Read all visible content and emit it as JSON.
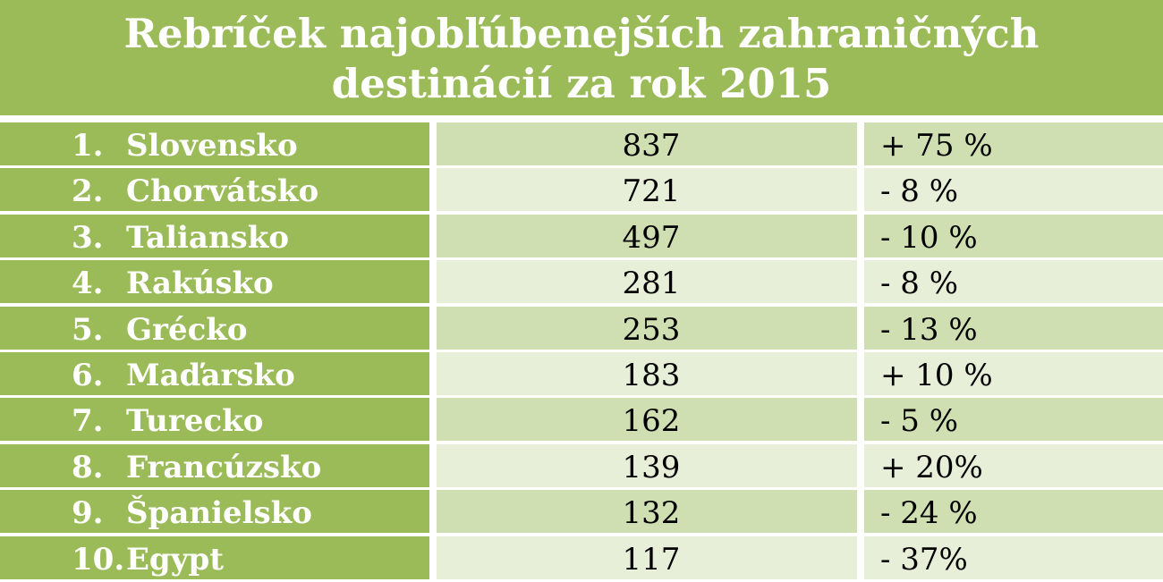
{
  "title": {
    "line1": "Rebríček najobľúbenejších zahraničných",
    "line2": "destinácií za rok 2015"
  },
  "rows": [
    {
      "rank": "1.",
      "country": "Slovensko",
      "count": "837",
      "change": "+ 75 %"
    },
    {
      "rank": "2.",
      "country": "Chorvátsko",
      "count": "721",
      "change": "- 8 %"
    },
    {
      "rank": "3.",
      "country": "Taliansko",
      "count": "497",
      "change": "- 10 %"
    },
    {
      "rank": "4.",
      "country": "Rakúsko",
      "count": "281",
      "change": "- 8 %"
    },
    {
      "rank": "5.",
      "country": "Grécko",
      "count": "253",
      "change": "- 13 %"
    },
    {
      "rank": "6.",
      "country": "Maďarsko",
      "count": "183",
      "change": "+ 10 %"
    },
    {
      "rank": "7.",
      "country": "Turecko",
      "count": "162",
      "change": "- 5 %"
    },
    {
      "rank": "8.",
      "country": "Francúzsko",
      "count": "139",
      "change": "+ 20%"
    },
    {
      "rank": "9.",
      "country": "Španielsko",
      "count": "132",
      "change": "- 24 %"
    },
    {
      "rank": "10.",
      "country": "Egypt",
      "count": "117",
      "change": "- 37%"
    }
  ],
  "colors": {
    "header_green": "#9bbb59",
    "row_dark": "#cfdfb1",
    "row_light": "#e7efd8"
  }
}
